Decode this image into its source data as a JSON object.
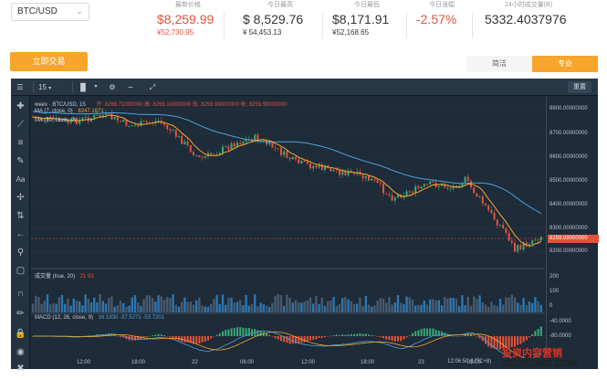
{
  "pair": {
    "label": "BTC/USD"
  },
  "stats": [
    {
      "label": "最新价格",
      "value": "$8,259.99",
      "sub": "¥52,730.95",
      "tone": "red"
    },
    {
      "label": "今日最高",
      "value": "$ 8,529.76",
      "sub": "¥ 54,453.13",
      "tone": "normal"
    },
    {
      "label": "今日最低",
      "value": "$8,171.91",
      "sub": "¥52,168.65",
      "tone": "normal"
    },
    {
      "label": "今日涨幅",
      "value": "-2.57%",
      "sub": "",
      "tone": "red"
    },
    {
      "label": "24小时成交量(B)",
      "value": "5332.4037976",
      "sub": "",
      "tone": "normal"
    }
  ],
  "trade_button": "立即交易",
  "mode_tabs": [
    {
      "label": "简洁",
      "active": false
    },
    {
      "label": "专业",
      "active": true
    }
  ],
  "toolbar": {
    "interval": "15",
    "reset": "重置"
  },
  "chart": {
    "symbol_legend": "weex · BTC/USD, 15",
    "ohlc_legend": "开: 8268.71000000 高: 8269.10000000 低: 8259.99000000 收: 8259.99000000",
    "ma7_legend": "MA (7, close, 0)",
    "ma7_value": "8247.1671",
    "ma30_legend": "MA (30, close, 0)",
    "volume_legend": "成交量 (true, 20)",
    "volume_values": "21   93",
    "macd_legend": "MACD (12, 26, close, 9)",
    "macd_values": "16.1930   -37.5271   -53.7201",
    "current_price_tag": "8259.99000000",
    "price_ticks": [
      "8800.00000000",
      "8700.00000000",
      "8600.00000000",
      "8500.00000000",
      "8400.00000000",
      "8300.00000000",
      "8200.00000000"
    ],
    "volume_ticks": [
      "200",
      "100",
      "0"
    ],
    "macd_ticks": [
      "-40.0000",
      "-80.0000"
    ],
    "time_ticks": [
      "12:00",
      "18:00",
      "22",
      "06:00",
      "12:00",
      "18:00",
      "23",
      "06:00"
    ],
    "clock": "12:06:50 (UTC+8)",
    "colors": {
      "up": "#e5523b",
      "down": "#3aa876",
      "ma7": "#f7a52c",
      "ma30": "#4aa3df",
      "bg": "#1e2b38"
    }
  },
  "watermark": {
    "line1": "投资内容营销",
    "line2": "DEDECMS.COM"
  }
}
